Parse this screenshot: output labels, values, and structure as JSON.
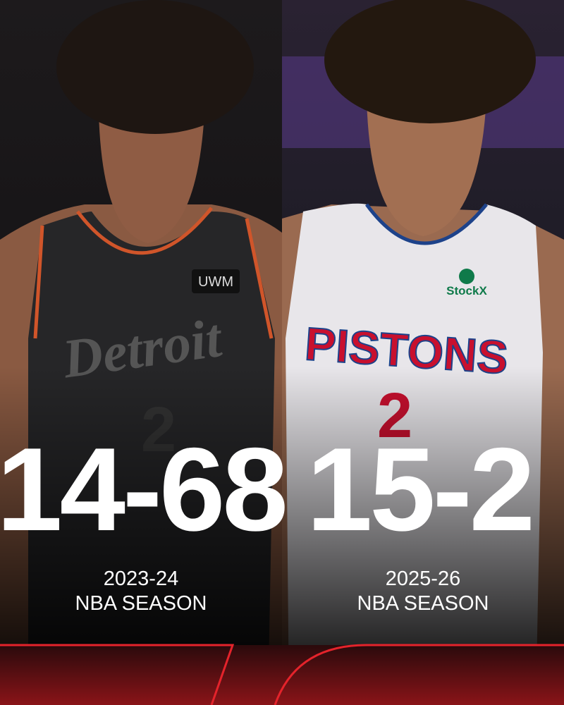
{
  "panels": [
    {
      "record": "14-68",
      "season": "2023-24",
      "league": "NBA SEASON",
      "jersey_text": "Detroit",
      "sponsor": "UWM",
      "number": "2"
    },
    {
      "record": "15-2",
      "season": "2025-26",
      "league": "NBA SEASON",
      "jersey_text": "PISTONS",
      "sponsor": "StockX",
      "number": "2"
    }
  ]
}
